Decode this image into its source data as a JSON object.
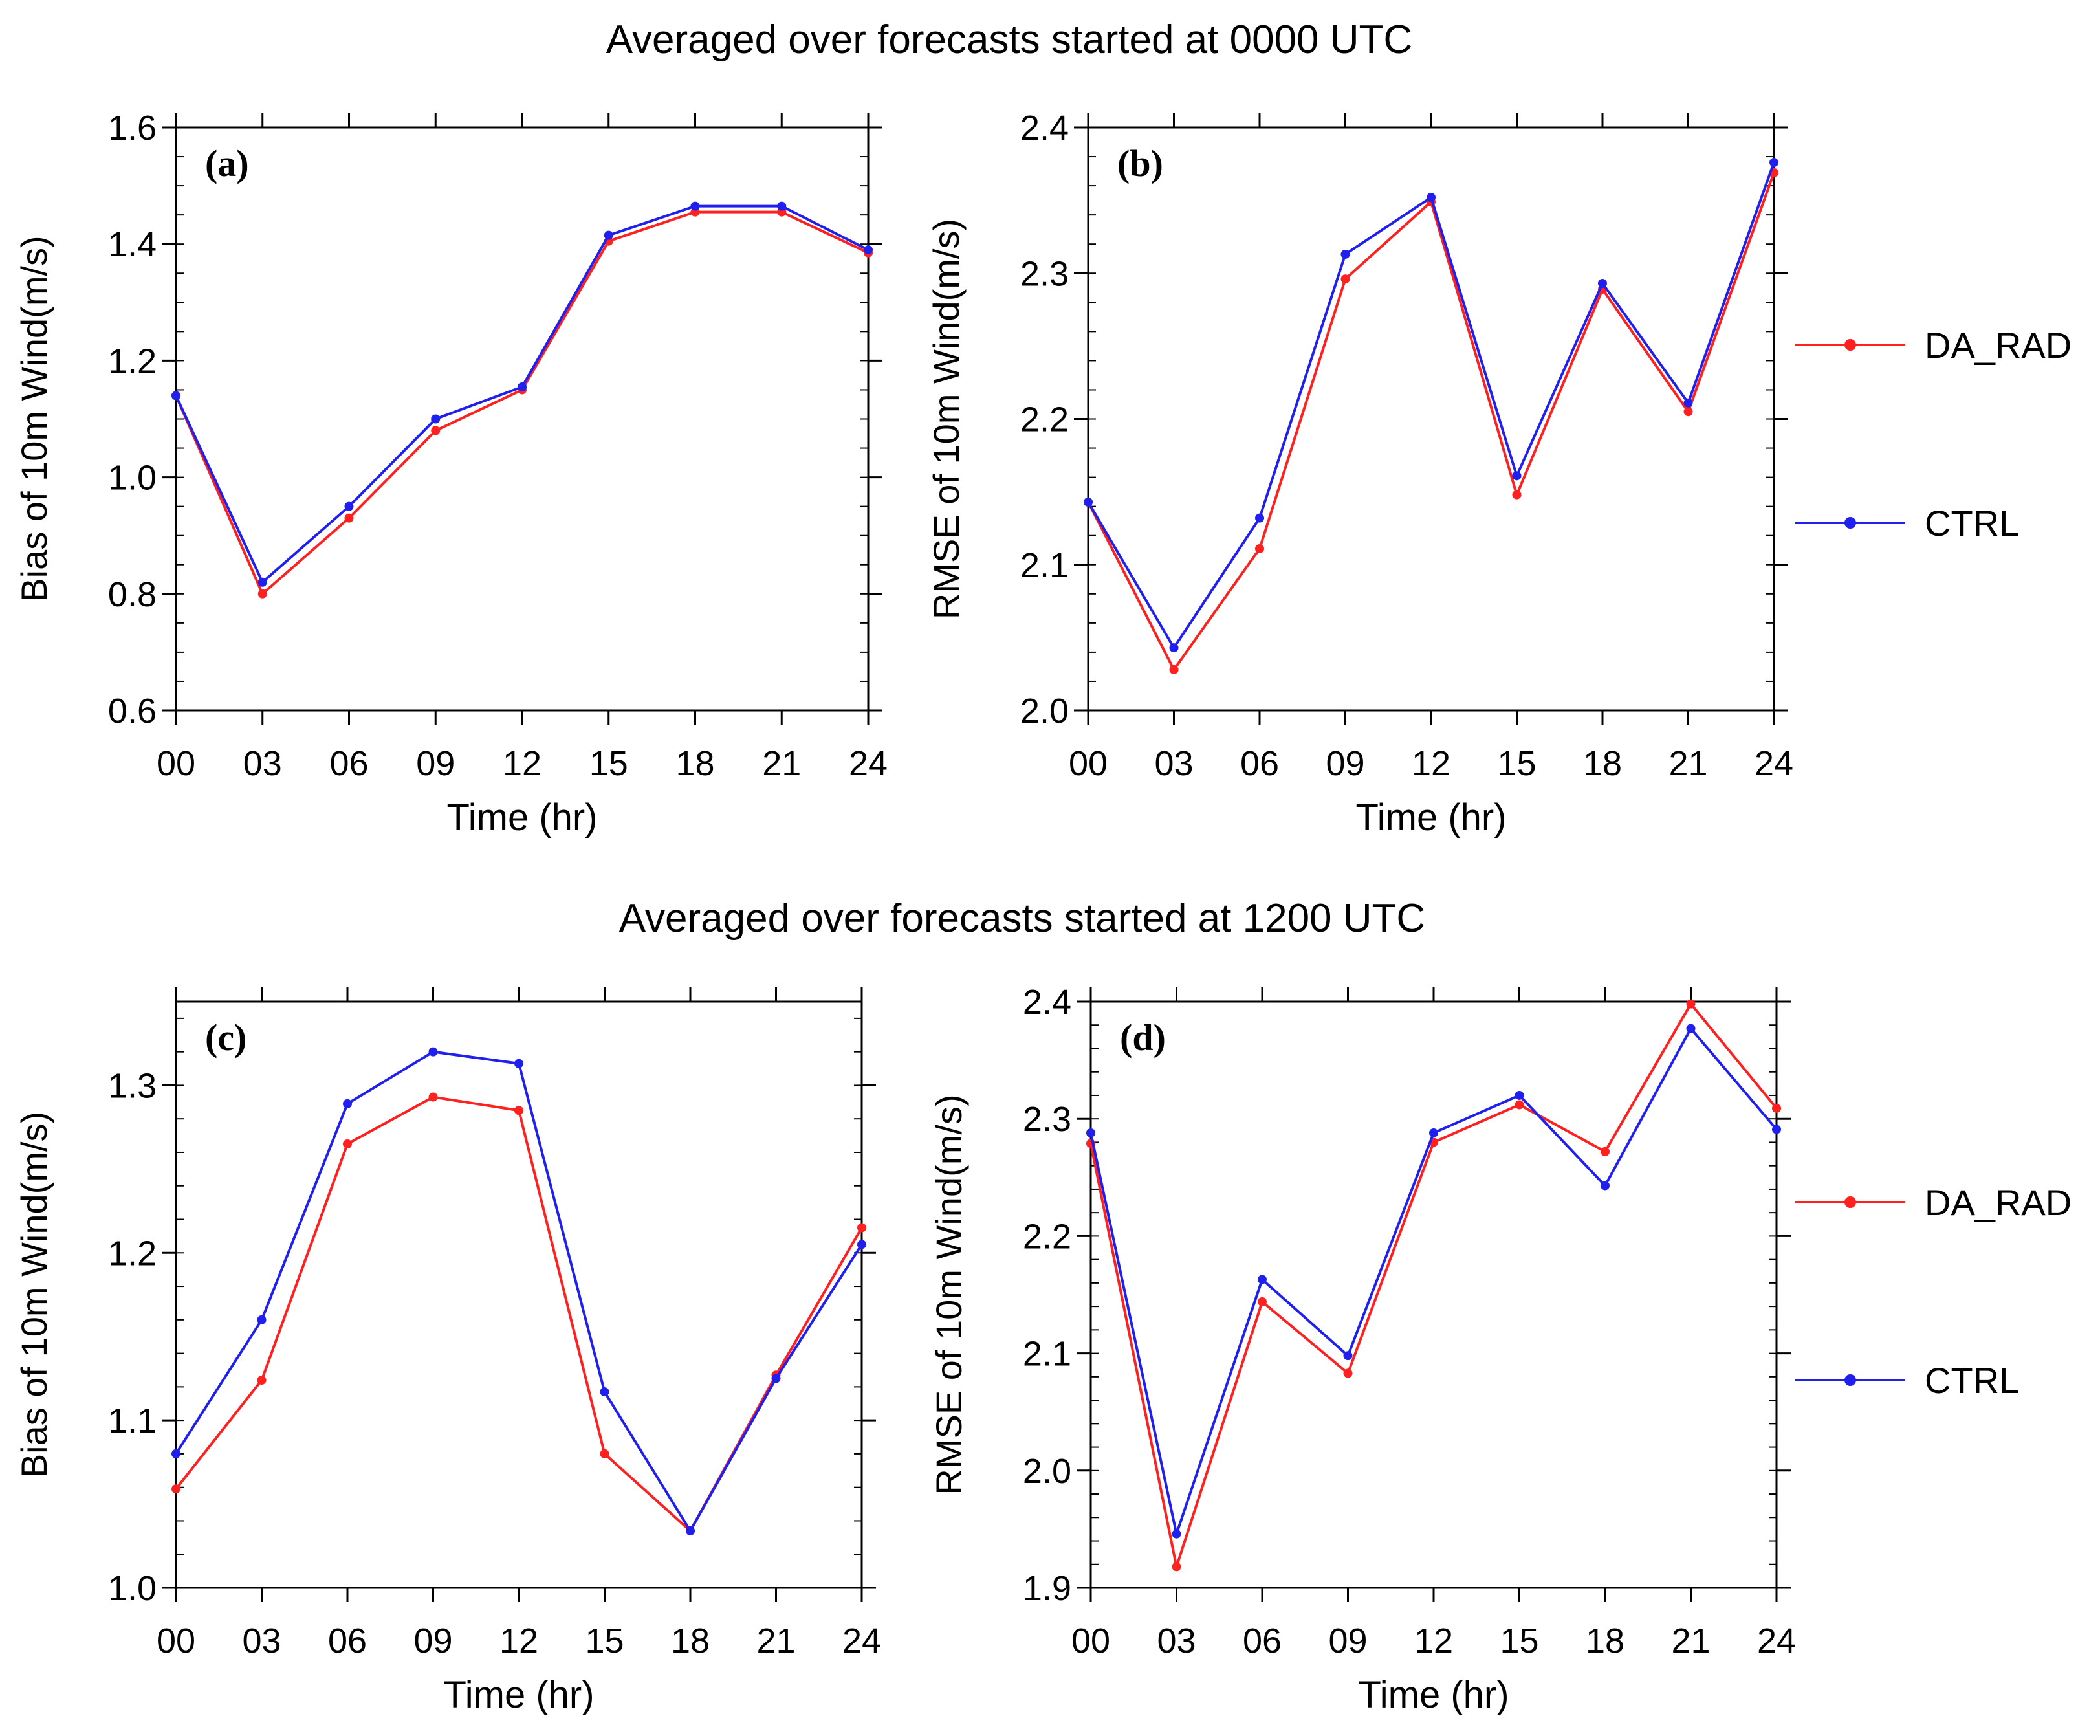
{
  "row_titles": [
    "Averaged over forecasts started at 0000 UTC",
    "Averaged over forecasts started at 1200 UTC"
  ],
  "colors": {
    "DA_RAD": "#ff2020",
    "CTRL": "#2020ee",
    "axis": "#000000"
  },
  "legends": [
    {
      "entries": [
        {
          "name": "DA_RAD",
          "color": "#ff2020"
        },
        {
          "name": "CTRL",
          "color": "#2020ee"
        }
      ]
    },
    {
      "entries": [
        {
          "name": "DA_RAD",
          "color": "#ff2020"
        },
        {
          "name": "CTRL",
          "color": "#2020ee"
        }
      ]
    }
  ],
  "chart_data": [
    {
      "type": "line",
      "panel_label": "(a)",
      "xlabel": "Time (hr)",
      "ylabel": "Bias of 10m Wind(m/s)",
      "categories": [
        "00",
        "03",
        "06",
        "09",
        "12",
        "15",
        "18",
        "21",
        "24"
      ],
      "ylim": [
        0.6,
        1.6
      ],
      "yticks": [
        0.6,
        0.8,
        1.0,
        1.2,
        1.4,
        1.6
      ],
      "ytick_labels": [
        "0.6",
        "0.8",
        "1.0",
        "1.2",
        "1.4",
        "1.6"
      ],
      "yminor_step": 0.05,
      "series": [
        {
          "name": "DA_RAD",
          "color": "#ff2020",
          "values": [
            1.14,
            0.8,
            0.93,
            1.08,
            1.15,
            1.405,
            1.455,
            1.455,
            1.385
          ]
        },
        {
          "name": "CTRL",
          "color": "#2020ee",
          "values": [
            1.14,
            0.82,
            0.95,
            1.1,
            1.155,
            1.415,
            1.465,
            1.465,
            1.39
          ]
        }
      ]
    },
    {
      "type": "line",
      "panel_label": "(b)",
      "xlabel": "Time (hr)",
      "ylabel": "RMSE of 10m Wind(m/s)",
      "categories": [
        "00",
        "03",
        "06",
        "09",
        "12",
        "15",
        "18",
        "21",
        "24"
      ],
      "ylim": [
        2.0,
        2.4
      ],
      "yticks": [
        2.0,
        2.1,
        2.2,
        2.3,
        2.4
      ],
      "ytick_labels": [
        "2.0",
        "2.1",
        "2.2",
        "2.3",
        "2.4"
      ],
      "yminor_step": 0.02,
      "series": [
        {
          "name": "DA_RAD",
          "color": "#ff2020",
          "values": [
            2.143,
            2.028,
            2.111,
            2.296,
            2.349,
            2.148,
            2.289,
            2.205,
            2.369
          ]
        },
        {
          "name": "CTRL",
          "color": "#2020ee",
          "values": [
            2.143,
            2.043,
            2.132,
            2.313,
            2.352,
            2.161,
            2.293,
            2.211,
            2.376
          ]
        }
      ]
    },
    {
      "type": "line",
      "panel_label": "(c)",
      "xlabel": "Time (hr)",
      "ylabel": "Bias of 10m Wind(m/s)",
      "categories": [
        "00",
        "03",
        "06",
        "09",
        "12",
        "15",
        "18",
        "21",
        "24"
      ],
      "ylim": [
        1.0,
        1.35
      ],
      "yticks": [
        1.0,
        1.1,
        1.2,
        1.3
      ],
      "ytick_labels": [
        "1.0",
        "1.1",
        "1.2",
        "1.3"
      ],
      "yminor_step": 0.02,
      "series": [
        {
          "name": "DA_RAD",
          "color": "#ff2020",
          "values": [
            1.059,
            1.124,
            1.265,
            1.293,
            1.285,
            1.08,
            1.034,
            1.127,
            1.215
          ]
        },
        {
          "name": "CTRL",
          "color": "#2020ee",
          "values": [
            1.08,
            1.16,
            1.289,
            1.32,
            1.313,
            1.117,
            1.034,
            1.125,
            1.205
          ]
        }
      ]
    },
    {
      "type": "line",
      "panel_label": "(d)",
      "xlabel": "Time (hr)",
      "ylabel": "RMSE of 10m Wind(m/s)",
      "categories": [
        "00",
        "03",
        "06",
        "09",
        "12",
        "15",
        "18",
        "21",
        "24"
      ],
      "ylim": [
        1.9,
        2.4
      ],
      "yticks": [
        1.9,
        2.0,
        2.1,
        2.2,
        2.3,
        2.4
      ],
      "ytick_labels": [
        "1.9",
        "2.0",
        "2.1",
        "2.2",
        "2.3",
        "2.4"
      ],
      "yminor_step": 0.02,
      "series": [
        {
          "name": "DA_RAD",
          "color": "#ff2020",
          "values": [
            2.279,
            1.918,
            2.144,
            2.083,
            2.28,
            2.312,
            2.272,
            2.398,
            2.309
          ]
        },
        {
          "name": "CTRL",
          "color": "#2020ee",
          "values": [
            2.288,
            1.946,
            2.163,
            2.098,
            2.288,
            2.32,
            2.243,
            2.377,
            2.291
          ]
        }
      ]
    }
  ]
}
